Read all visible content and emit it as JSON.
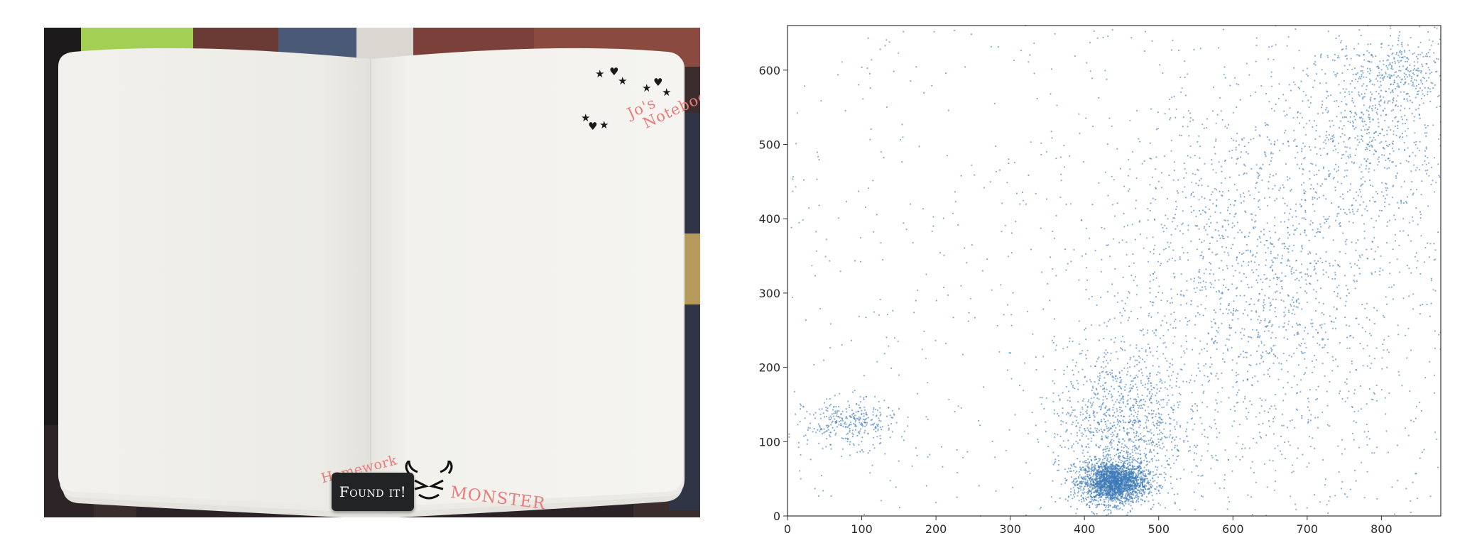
{
  "game": {
    "notebook_title_line1": "Jo's",
    "notebook_title_line2": "Notebook",
    "logo_word_left": "Homework",
    "logo_word_right": "MONSTER",
    "found_button_label": "Found it!",
    "colors": {
      "page": "#f3f2ee",
      "accent_pink": "#ea7c7c",
      "button": "#222324",
      "tab_green": "#a3cf55"
    },
    "icons": [
      "star-icon",
      "heart-icon",
      "monster-face-icon"
    ]
  },
  "chart_data": {
    "type": "scatter",
    "title": "",
    "xlabel": "",
    "ylabel": "",
    "xlim": [
      0,
      880
    ],
    "ylim": [
      0,
      660
    ],
    "xticks": [
      0,
      100,
      200,
      300,
      400,
      500,
      600,
      700,
      800
    ],
    "yticks": [
      0,
      100,
      200,
      300,
      400,
      500,
      600
    ],
    "grid": false,
    "legend": "none",
    "point_color": "#3a78b6",
    "clusters": [
      {
        "name": "",
        "center": [
          440,
          45
        ],
        "spread": [
          22,
          14
        ],
        "count": 2200
      },
      {
        "name": "",
        "center": [
          450,
          120
        ],
        "spread": [
          45,
          55
        ],
        "count": 1100
      },
      {
        "name": "",
        "center": [
          85,
          125
        ],
        "spread": [
          30,
          16
        ],
        "count": 320
      },
      {
        "name": "",
        "center": [
          640,
          320
        ],
        "spread": [
          110,
          130
        ],
        "count": 1800
      },
      {
        "name": "",
        "center": [
          790,
          540
        ],
        "spread": [
          55,
          70
        ],
        "count": 700
      },
      {
        "name": "",
        "center": [
          830,
          600
        ],
        "spread": [
          25,
          18
        ],
        "count": 160
      }
    ],
    "background_points": 700
  }
}
